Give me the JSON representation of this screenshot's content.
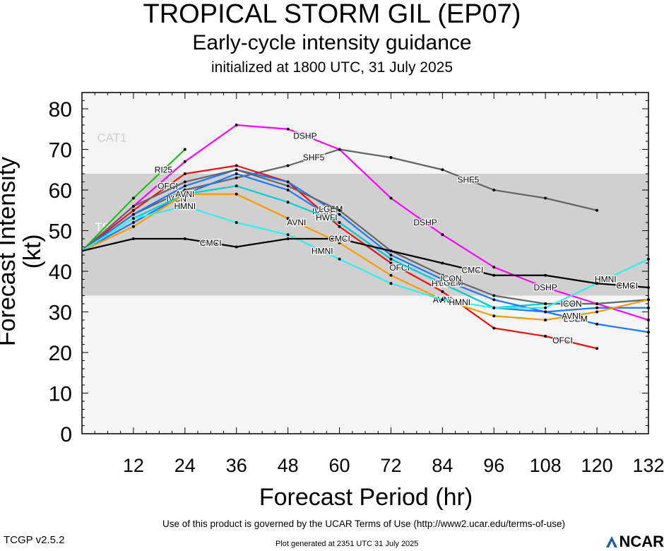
{
  "header": {
    "title": "TROPICAL STORM GIL (EP07)",
    "subtitle": "Early-cycle intensity guidance",
    "init": "initialized at 1800 UTC, 31 July 2025"
  },
  "footer": {
    "terms": "Use of this product is governed by the UCAR Terms of Use (http://www2.ucar.edu/terms-of-use)",
    "version": "TCGP v2.5.2",
    "generated": "Plot generated at 2351 UTC   31 July 2025",
    "logo_text": "NCAR"
  },
  "chart_data": {
    "type": "line",
    "xlabel": "Forecast Period (hr)",
    "ylabel": "Forecast Intensity (kt)",
    "xlim": [
      0,
      132
    ],
    "ylim": [
      0,
      84
    ],
    "xticks": [
      12,
      24,
      36,
      48,
      60,
      72,
      84,
      96,
      108,
      120,
      132
    ],
    "yticks": [
      0,
      10,
      20,
      30,
      40,
      50,
      60,
      70,
      80
    ],
    "bands": [
      {
        "label": "TS",
        "from": 34,
        "to": 64,
        "color": "#d0d0d0"
      },
      {
        "label": "CAT1",
        "from": 64,
        "to": 84,
        "color": "#f5f5f5"
      }
    ],
    "series": [
      {
        "name": "SHF5",
        "color": "#646464",
        "x": [
          0,
          12,
          24,
          36,
          48,
          60,
          72,
          84,
          96,
          108,
          120
        ],
        "y": [
          45,
          54,
          60,
          63,
          66,
          70,
          68,
          65,
          60,
          58,
          55
        ],
        "label_x": [
          54,
          90
        ]
      },
      {
        "name": "DSHP",
        "color": "#ff00ff",
        "x": [
          0,
          12,
          24,
          36,
          48,
          60,
          72,
          84,
          96,
          108,
          120,
          132
        ],
        "y": [
          45,
          56,
          67,
          76,
          75,
          70,
          58,
          49,
          41,
          36,
          32,
          28
        ],
        "label_x": [
          52,
          80,
          108
        ]
      },
      {
        "name": "RI25",
        "color": "#22bb22",
        "x": [
          0,
          12,
          24
        ],
        "y": [
          45,
          58,
          70
        ],
        "label_x": [
          19
        ]
      },
      {
        "name": "OFCI",
        "color": "#ee1111",
        "x": [
          0,
          12,
          24,
          36,
          48,
          60,
          72,
          84,
          96,
          108,
          120
        ],
        "y": [
          45,
          55,
          64,
          66,
          62,
          51,
          42,
          35,
          26,
          24,
          21
        ],
        "label_x": [
          20,
          74,
          112
        ]
      },
      {
        "name": "IVCN",
        "color": "#1e78ff",
        "x": [
          0,
          12,
          24,
          36,
          48,
          60,
          72,
          84,
          96,
          108,
          120,
          132
        ],
        "y": [
          45,
          52,
          59,
          64,
          60,
          52,
          43,
          37,
          31,
          30,
          31,
          31
        ],
        "label_x": [
          22,
          56,
          84
        ]
      },
      {
        "name": "HWFI",
        "color": "#00d0d0",
        "x": [
          0,
          12,
          24,
          36,
          48,
          60,
          72,
          84,
          96,
          108,
          120,
          132
        ],
        "y": [
          45,
          53,
          59,
          61,
          57,
          52,
          43,
          37,
          31,
          32,
          32,
          33
        ],
        "label_x": [
          57,
          84
        ]
      },
      {
        "name": "LGEM",
        "color": "#1e78ff",
        "x": [
          0,
          12,
          24,
          36,
          48,
          60,
          72,
          84,
          96,
          108,
          120,
          132
        ],
        "y": [
          45,
          54,
          61,
          65,
          62,
          54,
          44,
          38,
          33,
          30,
          27,
          25
        ],
        "label_x": [
          58,
          86,
          115
        ]
      },
      {
        "name": "ICON",
        "color": "#666666",
        "x": [
          0,
          12,
          24,
          36,
          48,
          60,
          72,
          84,
          96,
          108,
          120,
          132
        ],
        "y": [
          45,
          56,
          62,
          65,
          61,
          55,
          45,
          39,
          34,
          32,
          32,
          33
        ],
        "label_x": [
          86,
          114
        ]
      },
      {
        "name": "AVNI",
        "color": "#ff9900",
        "x": [
          0,
          12,
          24,
          36,
          48,
          60,
          72,
          84,
          96,
          108,
          120,
          132
        ],
        "y": [
          45,
          51,
          59,
          59,
          53,
          47,
          39,
          33,
          29,
          28,
          30,
          33
        ],
        "label_x": [
          24,
          50,
          84,
          114
        ]
      },
      {
        "name": "HMNI",
        "color": "#33eeee",
        "x": [
          0,
          12,
          24,
          36,
          48,
          60,
          72,
          84,
          96,
          108,
          120,
          132
        ],
        "y": [
          45,
          53,
          56,
          52,
          49,
          43,
          37,
          33,
          31,
          31,
          37,
          43
        ],
        "label_x": [
          24,
          56,
          88,
          122
        ]
      },
      {
        "name": "CMCI",
        "color": "#000000",
        "x": [
          0,
          12,
          24,
          36,
          48,
          60,
          72,
          84,
          96,
          108,
          120,
          132
        ],
        "y": [
          45,
          48,
          48,
          46,
          48,
          48,
          45,
          42,
          39,
          39,
          37,
          36
        ],
        "label_x": [
          30,
          60,
          91,
          127
        ]
      }
    ],
    "band_labels": [
      "TS",
      "CAT1"
    ]
  }
}
